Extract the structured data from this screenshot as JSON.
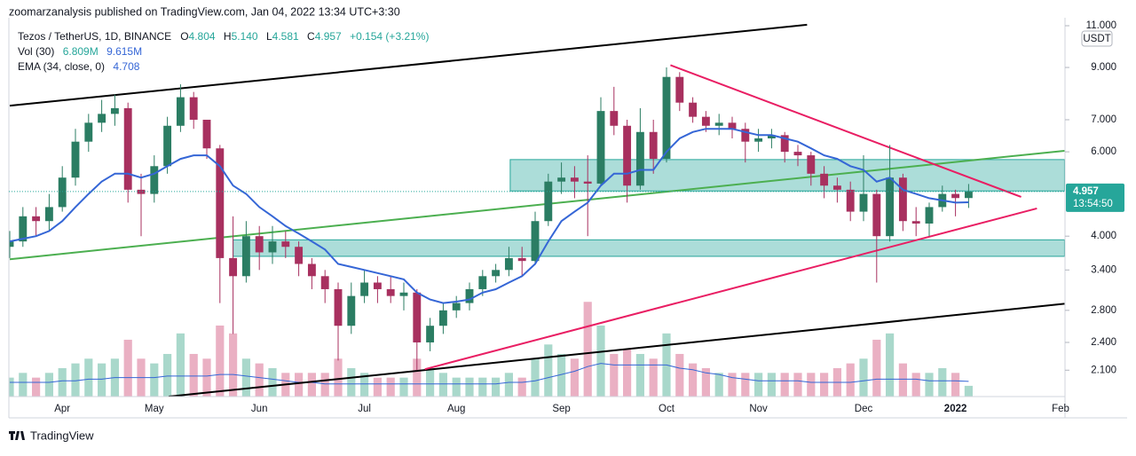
{
  "header": "zoomarzanalysis published on TradingView.com, Jan 04, 2022 13:34 UTC+3:30",
  "footer": "TradingView",
  "chart_data": {
    "type": "candlestick",
    "title": "Tezos / TetherUS, 1D, BINANCE",
    "legend": {
      "o_label": "O",
      "o": "4.804",
      "h_label": "H",
      "h": "5.140",
      "l_label": "L",
      "l": "4.581",
      "c_label": "C",
      "c": "4.957",
      "change": "+0.154 (+3.21%)",
      "vol_label": "Vol (30)",
      "vol": "6.809M",
      "vol_ma": "9.615M",
      "ema_label": "EMA (34, close, 0)",
      "ema": "4.708"
    },
    "y_unit": "USDT",
    "countdown": "13:54:50",
    "log_y": true,
    "ylim": [
      1.85,
      11.43
    ],
    "yticks": [
      {
        "value": 2.1,
        "label": "2.100"
      },
      {
        "value": 2.4,
        "label": "2.400"
      },
      {
        "value": 2.8,
        "label": "2.800"
      },
      {
        "value": 3.4,
        "label": "3.400"
      },
      {
        "value": 4,
        "label": "4.000"
      },
      {
        "value": 6,
        "label": "6.000"
      },
      {
        "value": 7,
        "label": "7.000"
      },
      {
        "value": 9,
        "label": "9.000"
      },
      {
        "value": 11,
        "label": "11.000"
      }
    ],
    "volume_lim": [
      0,
      240
    ],
    "up_color": "#2b7d63",
    "down_color": "#a8305f",
    "volume_up_color": "#a9d8cb",
    "volume_down_color": "#eab0c3",
    "ema_color": "#3566d6",
    "volume_ma_color": "#3566d6",
    "categories": [
      null,
      null,
      null,
      null,
      "Apr",
      null,
      null,
      null,
      null,
      null,
      null,
      "May",
      null,
      null,
      null,
      null,
      null,
      null,
      null,
      "Jun",
      null,
      null,
      null,
      null,
      null,
      null,
      null,
      "Jul",
      null,
      null,
      null,
      null,
      null,
      null,
      "Aug",
      null,
      null,
      null,
      null,
      null,
      null,
      null,
      "Sep",
      null,
      null,
      null,
      null,
      null,
      null,
      null,
      "Oct",
      null,
      null,
      null,
      null,
      null,
      null,
      "Nov",
      null,
      null,
      null,
      null,
      null,
      null,
      null,
      "Dec",
      null,
      null,
      null,
      null,
      null,
      null,
      "2022",
      null,
      null,
      null,
      null,
      null,
      null,
      null,
      "Feb"
    ],
    "open": [
      3.8,
      3.9,
      4.4,
      4.3,
      4.6,
      5.3,
      6.3,
      6.9,
      7.2,
      7.4,
      5.0,
      4.9,
      5.6,
      6.8,
      7.8,
      7.0,
      6.1,
      3.6,
      3.3,
      4.0,
      3.7,
      3.9,
      3.8,
      3.5,
      3.3,
      3.1,
      2.6,
      3.0,
      3.2,
      3.1,
      3.0,
      3.05,
      2.4,
      2.6,
      2.8,
      2.9,
      3.1,
      3.3,
      3.4,
      3.6,
      3.55,
      4.3,
      5.2,
      5.3,
      5.2,
      5.15,
      7.3,
      6.8,
      5.1,
      6.6,
      5.8,
      8.6,
      7.6,
      7.1,
      6.8,
      6.9,
      6.7,
      6.3,
      6.4,
      6.5,
      6.0,
      5.9,
      5.4,
      5.1,
      5.0,
      4.5,
      4.9,
      4.0,
      5.3,
      4.3,
      4.25,
      4.6,
      4.9,
      4.804,
      null,
      null,
      null,
      null,
      null,
      null,
      null
    ],
    "high": [
      4.1,
      4.6,
      4.6,
      4.9,
      5.6,
      6.7,
      7.2,
      7.7,
      7.9,
      7.6,
      5.4,
      5.9,
      7.1,
      8.3,
      8.0,
      7.0,
      6.2,
      4.4,
      4.3,
      4.2,
      4.2,
      4.1,
      3.9,
      3.6,
      3.4,
      3.2,
      3.2,
      3.4,
      3.3,
      3.3,
      3.2,
      3.1,
      2.7,
      2.9,
      3.0,
      3.2,
      3.4,
      3.5,
      3.8,
      3.8,
      4.5,
      5.4,
      5.7,
      5.6,
      5.9,
      7.8,
      8.2,
      7.0,
      7.4,
      7.0,
      9.0,
      8.8,
      7.8,
      7.3,
      7.2,
      7.1,
      6.9,
      6.7,
      6.7,
      6.6,
      6.2,
      6.0,
      5.6,
      5.3,
      5.2,
      5.9,
      5.0,
      6.2,
      5.4,
      4.6,
      4.7,
      5.1,
      5.0,
      5.14,
      null,
      null,
      null,
      null,
      null,
      null,
      null
    ],
    "low": [
      3.6,
      3.8,
      4.0,
      4.1,
      4.5,
      5.1,
      6.0,
      6.6,
      6.8,
      4.7,
      4.0,
      4.7,
      5.4,
      6.6,
      6.7,
      5.8,
      2.9,
      2.5,
      3.2,
      3.4,
      3.5,
      3.6,
      3.3,
      3.1,
      2.9,
      2.2,
      2.5,
      2.9,
      2.9,
      2.9,
      2.8,
      2.1,
      2.3,
      2.5,
      2.7,
      2.8,
      3.0,
      3.2,
      3.3,
      3.3,
      3.5,
      4.2,
      4.9,
      4.8,
      4.0,
      5.1,
      6.5,
      4.7,
      5.0,
      5.4,
      5.7,
      7.3,
      6.9,
      6.6,
      6.5,
      6.4,
      5.7,
      6.0,
      6.1,
      5.7,
      5.6,
      5.1,
      4.8,
      4.7,
      4.3,
      4.3,
      3.2,
      3.9,
      4.1,
      4.0,
      4.0,
      4.5,
      4.4,
      4.581,
      null,
      null,
      null,
      null,
      null,
      null,
      null
    ],
    "close": [
      3.9,
      4.4,
      4.3,
      4.6,
      5.3,
      6.3,
      6.9,
      7.2,
      7.4,
      5.0,
      4.9,
      5.6,
      6.8,
      7.8,
      7.0,
      6.1,
      3.6,
      3.3,
      4.0,
      3.7,
      3.9,
      3.8,
      3.5,
      3.3,
      3.1,
      2.6,
      3.0,
      3.2,
      3.1,
      3.0,
      3.05,
      2.4,
      2.6,
      2.8,
      2.9,
      3.1,
      3.3,
      3.4,
      3.6,
      3.55,
      4.3,
      5.2,
      5.3,
      5.2,
      5.15,
      7.3,
      6.8,
      5.1,
      6.6,
      5.8,
      8.6,
      7.6,
      7.1,
      6.8,
      6.9,
      6.7,
      6.3,
      6.4,
      6.5,
      6.0,
      5.9,
      5.4,
      5.1,
      5.0,
      4.5,
      4.9,
      4.0,
      5.3,
      4.3,
      4.25,
      4.6,
      4.9,
      4.804,
      4.957,
      null,
      null,
      null,
      null,
      null,
      null,
      null
    ],
    "volume": [
      12,
      15,
      12,
      15,
      18,
      21,
      24,
      21,
      24,
      36,
      24,
      21,
      27,
      40,
      27,
      24,
      45,
      40,
      24,
      21,
      18,
      15,
      15,
      15,
      15,
      24,
      18,
      15,
      12,
      12,
      12,
      24,
      18,
      15,
      12,
      12,
      12,
      12,
      15,
      12,
      24,
      33,
      27,
      24,
      60,
      45,
      27,
      30,
      27,
      24,
      40,
      27,
      21,
      18,
      15,
      15,
      15,
      15,
      15,
      15,
      15,
      15,
      15,
      18,
      21,
      24,
      36,
      40,
      21,
      15,
      15,
      18,
      15,
      6.809,
      null,
      null,
      null,
      null,
      null,
      null,
      null
    ],
    "volume_ma": [
      9,
      9,
      9,
      9,
      10,
      10,
      11,
      11,
      12,
      12,
      12,
      12,
      13,
      13,
      13,
      13,
      14,
      14,
      13,
      12,
      11,
      10,
      9,
      9,
      8,
      8,
      8,
      8,
      8,
      8,
      8,
      8,
      8,
      8,
      8,
      8,
      8,
      8,
      9,
      9,
      10,
      12,
      14,
      16,
      19,
      21,
      20,
      20,
      20,
      20,
      20,
      18,
      17,
      15,
      14,
      12,
      11,
      10,
      10,
      10,
      10,
      9,
      9,
      9,
      9,
      10,
      11,
      11,
      11,
      11,
      10,
      10,
      10,
      9.615,
      null,
      null,
      null,
      null,
      null,
      null,
      null
    ],
    "ema": [
      3.9,
      3.95,
      4.0,
      4.1,
      4.3,
      4.6,
      4.9,
      5.2,
      5.4,
      5.4,
      5.3,
      5.4,
      5.6,
      5.8,
      5.9,
      5.9,
      5.6,
      5.1,
      4.9,
      4.6,
      4.4,
      4.2,
      4.05,
      3.9,
      3.75,
      3.5,
      3.45,
      3.4,
      3.35,
      3.3,
      3.25,
      3.05,
      2.95,
      2.9,
      2.92,
      2.95,
      3.05,
      3.1,
      3.2,
      3.3,
      3.5,
      3.9,
      4.3,
      4.5,
      4.7,
      5.1,
      5.4,
      5.4,
      5.5,
      5.5,
      6.0,
      6.4,
      6.6,
      6.7,
      6.7,
      6.7,
      6.6,
      6.5,
      6.5,
      6.4,
      6.3,
      6.1,
      5.9,
      5.8,
      5.6,
      5.5,
      5.2,
      5.3,
      5.0,
      4.9,
      4.8,
      4.75,
      4.7,
      4.708,
      null,
      null,
      null,
      null,
      null,
      null,
      null
    ],
    "drawings": {
      "lines": [
        {
          "color": "#000000",
          "x": [
            0,
            60.7
          ],
          "y": [
            7.49,
            11.05
          ]
        },
        {
          "color": "#000000",
          "x": [
            12.1,
            80.3
          ],
          "y": [
            1.85,
            2.89
          ]
        },
        {
          "color": "#4caf50",
          "x": [
            0,
            80.3
          ],
          "y": [
            3.58,
            6.03
          ]
        },
        {
          "color": "#e91e63",
          "x": [
            50.3,
            77
          ],
          "y": [
            9.1,
            4.83
          ]
        },
        {
          "color": "#e91e63",
          "x": [
            31.6,
            78.2
          ],
          "y": [
            2.11,
            4.57
          ]
        }
      ],
      "boxes": [
        {
          "color": "#26a69a",
          "x": [
            38.1,
            80.3
          ],
          "y": [
            4.97,
            5.78
          ]
        },
        {
          "color": "#26a69a",
          "x": [
            17,
            80.3
          ],
          "y": [
            3.63,
            3.93
          ]
        }
      ]
    }
  }
}
